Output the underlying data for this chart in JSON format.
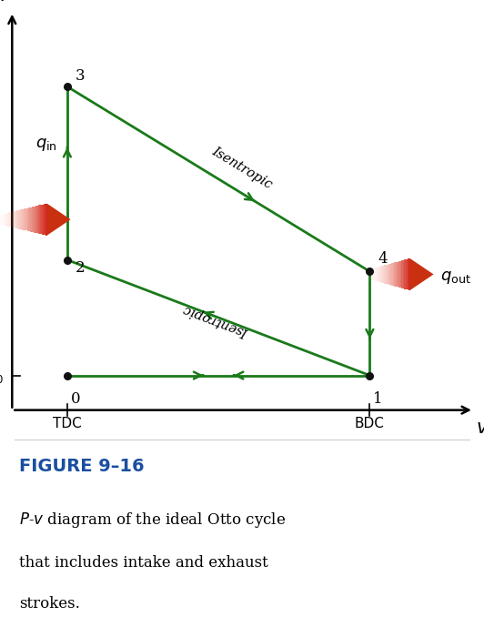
{
  "bg_color": "#ffffff",
  "green_color": "#1a7a1a",
  "point_color": "#111111",
  "title_color": "#1a4fa0",
  "points": {
    "0": [
      1.0,
      1.0
    ],
    "1": [
      5.5,
      1.0
    ],
    "2": [
      1.0,
      3.0
    ],
    "3": [
      1.0,
      6.0
    ],
    "4": [
      5.5,
      2.8
    ]
  },
  "figure_label": "FIGURE 9–16",
  "caption_line1": "P-v diagram of the ideal Otto cycle",
  "caption_line2": "that includes intake and exhaust",
  "caption_line3": "strokes.",
  "xlim": [
    0.0,
    7.2
  ],
  "ylim": [
    0.0,
    7.5
  ],
  "p0_y": 1.0,
  "tdc_x": 1.0,
  "bdc_x": 5.5
}
